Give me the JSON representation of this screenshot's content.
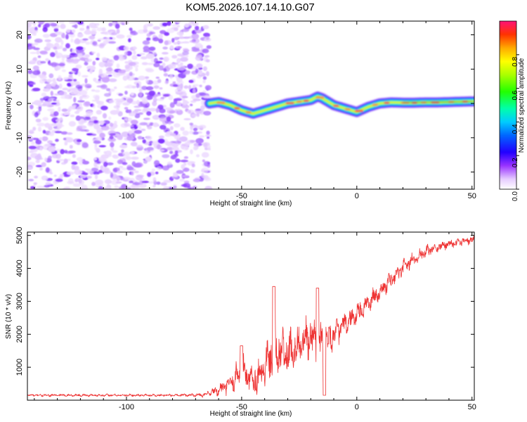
{
  "title": "KOM5.2026.107.14.10.G07",
  "chart_data": [
    {
      "type": "heatmap",
      "name": "spectrogram",
      "xlabel": "Height of straight line (km)",
      "ylabel": "Frequency (Hz)",
      "xlim": [
        -143,
        51
      ],
      "ylim": [
        -25,
        24
      ],
      "xticks": [
        -100,
        -50,
        0,
        50
      ],
      "yticks": [
        -20,
        -10,
        0,
        10,
        20
      ],
      "noise_region_x": [
        -143,
        -64
      ],
      "noise_region_y": [
        -25,
        24
      ],
      "ridge": {
        "x": [
          -64,
          -60,
          -55,
          -50,
          -45,
          -40,
          -35,
          -30,
          -25,
          -20,
          -17,
          -15,
          -10,
          -5,
          0,
          5,
          10,
          15,
          20,
          25,
          30,
          35,
          40,
          45,
          51
        ],
        "freq": [
          0,
          0.4,
          -0.5,
          -2,
          -3,
          -2,
          -1,
          0,
          0.5,
          1,
          2,
          1.5,
          -0.5,
          -1.5,
          -2.5,
          -1,
          0,
          0.3,
          0.2,
          0.2,
          0.3,
          0.3,
          0.4,
          0.5,
          0.6
        ]
      },
      "colorbar": {
        "label": "Normalized spectral amplitude",
        "range": [
          0.0,
          1.0
        ],
        "ticks": [
          "0.0",
          "0.2",
          "0.4",
          "0.6",
          "0.8"
        ]
      }
    },
    {
      "type": "line",
      "name": "snr",
      "xlabel": "Height of straight line (km)",
      "ylabel": "SNR (10 * v/v)",
      "xlim": [
        -143,
        51
      ],
      "ylim": [
        0,
        5100
      ],
      "xticks": [
        -100,
        -50,
        0,
        50
      ],
      "yticks": [
        1000,
        2000,
        3000,
        4000,
        5000
      ],
      "color": "#ee3333",
      "series": [
        {
          "name": "SNR",
          "x": [
            -143,
            -120,
            -100,
            -80,
            -66,
            -60,
            -55,
            -50,
            -45,
            -40,
            -35,
            -30,
            -25,
            -20,
            -15,
            -10,
            -5,
            0,
            5,
            10,
            15,
            20,
            25,
            30,
            35,
            40,
            45,
            51
          ],
          "mean": [
            150,
            150,
            150,
            150,
            160,
            300,
            500,
            900,
            600,
            1000,
            1500,
            1400,
            1700,
            1900,
            1800,
            2000,
            2300,
            2600,
            2950,
            3300,
            3650,
            4000,
            4300,
            4500,
            4650,
            4750,
            4820,
            4870
          ],
          "amplitude": [
            40,
            40,
            40,
            40,
            60,
            200,
            300,
            550,
            500,
            650,
            800,
            700,
            600,
            700,
            650,
            450,
            400,
            350,
            320,
            300,
            280,
            250,
            220,
            190,
            170,
            150,
            140,
            130
          ]
        }
      ],
      "peaks": [
        {
          "x": -50,
          "y": 1650
        },
        {
          "x": -36,
          "y": 3450
        },
        {
          "x": -17,
          "y": 3400
        },
        {
          "x": -14,
          "y": 150
        }
      ]
    }
  ]
}
